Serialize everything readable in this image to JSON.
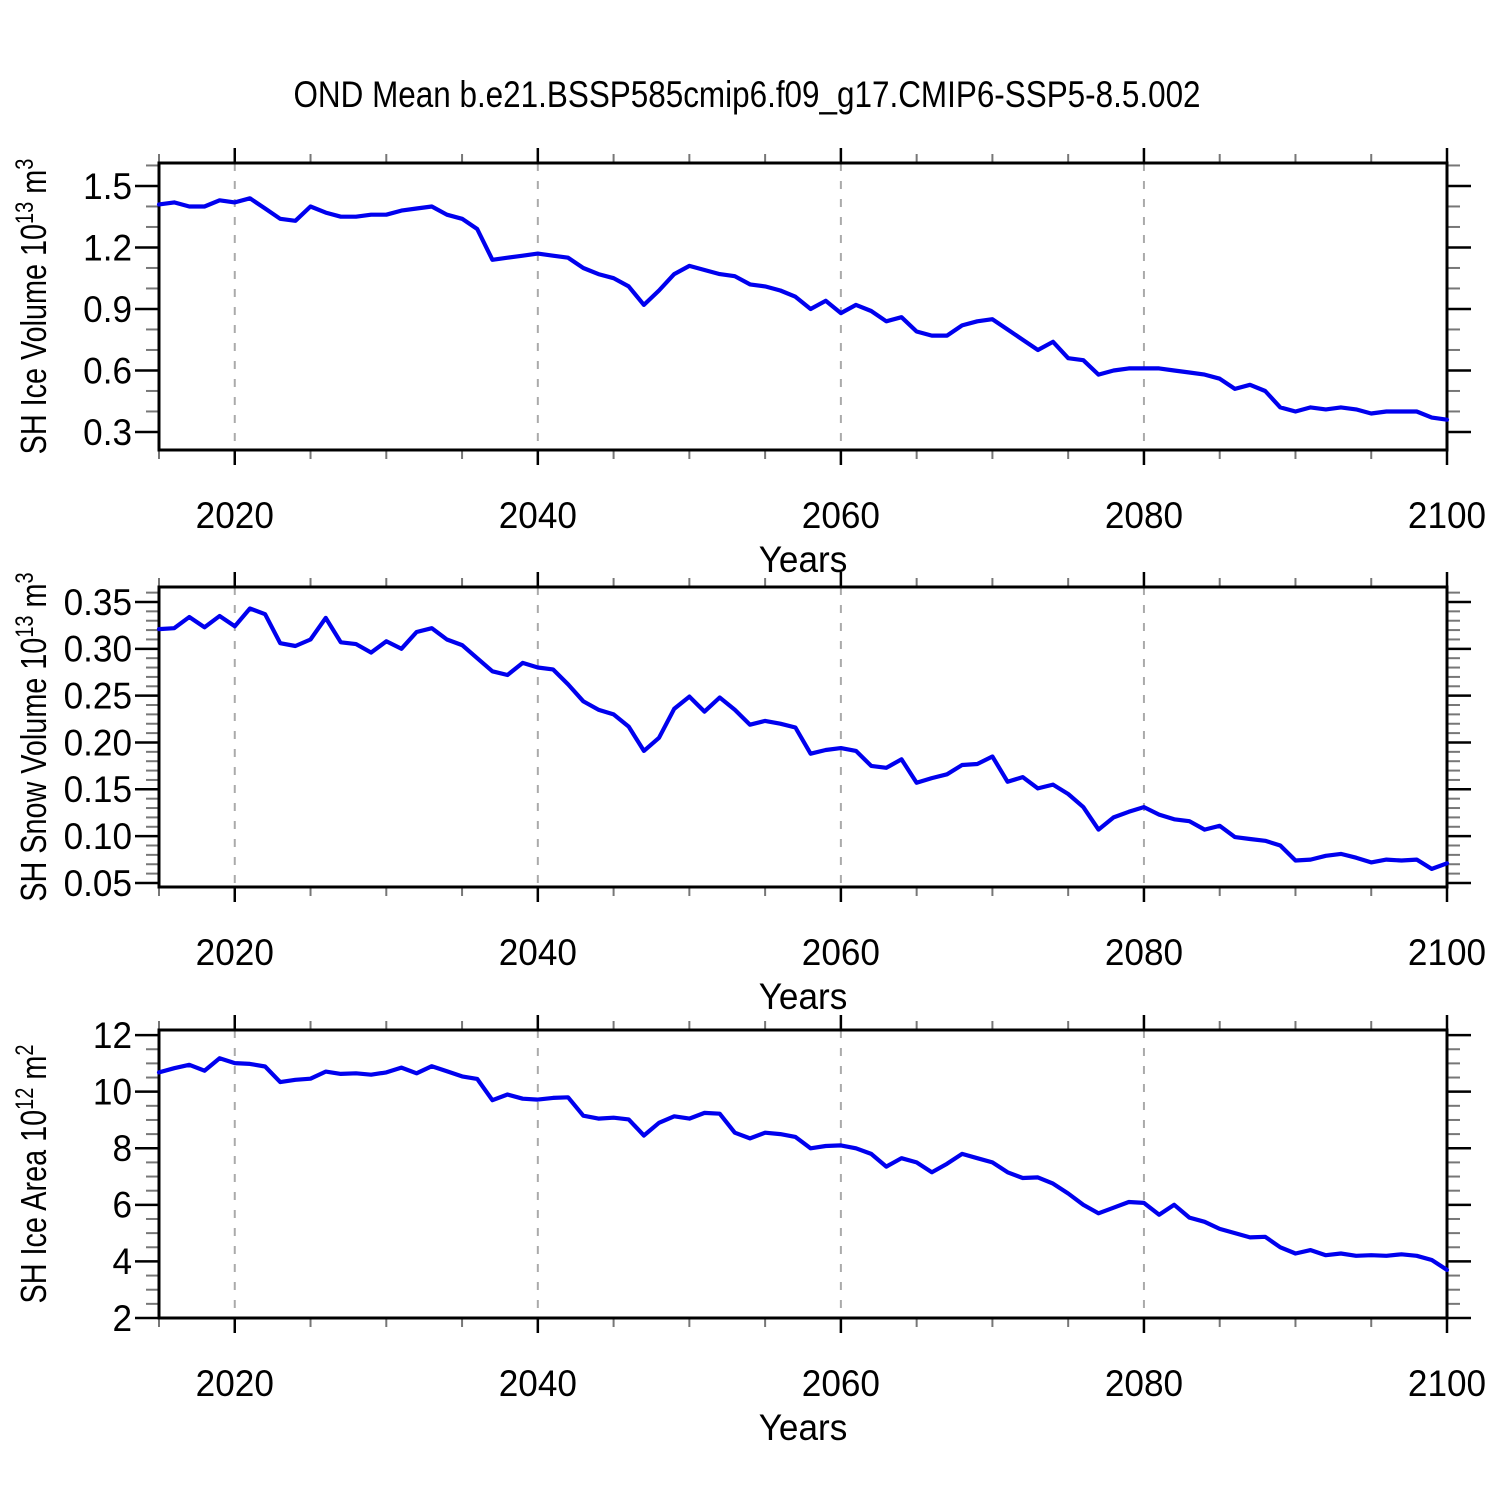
{
  "title": "OND Mean b.e21.BSSP585cmip6.f09_g17.CMIP6-SSP5-8.5.002",
  "chart_data": {
    "type": "line",
    "title": "OND Mean b.e21.BSSP585cmip6.f09_g17.CMIP6-SSP5-8.5.002",
    "style": {
      "line_color": "#0000ee",
      "frame_color": "#000000",
      "grid_color": "#aaaaaa",
      "major_tick_color": "#000000",
      "minor_tick_color": "#777777",
      "grid_on": true,
      "legend": "none"
    },
    "x_axis": {
      "label": "Years",
      "range": [
        2015,
        2100
      ],
      "major_ticks": [
        2020,
        2040,
        2060,
        2080,
        2100
      ],
      "major_tick_labels": [
        "2020",
        "2040",
        "2060",
        "2080",
        "2100"
      ],
      "minor_step": 5,
      "gridlines": [
        2020,
        2040,
        2060,
        2080
      ]
    },
    "x_years": [
      2015,
      2016,
      2017,
      2018,
      2019,
      2020,
      2021,
      2022,
      2023,
      2024,
      2025,
      2026,
      2027,
      2028,
      2029,
      2030,
      2031,
      2032,
      2033,
      2034,
      2035,
      2036,
      2037,
      2038,
      2039,
      2040,
      2041,
      2042,
      2043,
      2044,
      2045,
      2046,
      2047,
      2048,
      2049,
      2050,
      2051,
      2052,
      2053,
      2054,
      2055,
      2056,
      2057,
      2058,
      2059,
      2060,
      2061,
      2062,
      2063,
      2064,
      2065,
      2066,
      2067,
      2068,
      2069,
      2070,
      2071,
      2072,
      2073,
      2074,
      2075,
      2076,
      2077,
      2078,
      2079,
      2080,
      2081,
      2082,
      2083,
      2084,
      2085,
      2086,
      2087,
      2088,
      2089,
      2090,
      2091,
      2092,
      2093,
      2094,
      2095,
      2096,
      2097,
      2098,
      2099,
      2100
    ],
    "panels": [
      {
        "id": "ice-volume",
        "ylabel": "SH Ice Volume 10^13 m^3",
        "ylabel_parts": [
          [
            "text",
            "SH Ice Volume 10"
          ],
          [
            "sup",
            "13"
          ],
          [
            "text",
            " m"
          ],
          [
            "sup",
            "3"
          ]
        ],
        "ylim": [
          0.212,
          1.612
        ],
        "yticks": [
          1.5,
          1.2,
          0.9,
          0.6,
          0.3
        ],
        "ytick_labels": [
          "1.5",
          "1.2",
          "0.9",
          "0.6",
          "0.3"
        ],
        "y_minor_step": 0.1,
        "values": [
          1.41,
          1.42,
          1.4,
          1.4,
          1.43,
          1.42,
          1.44,
          1.39,
          1.34,
          1.33,
          1.4,
          1.37,
          1.35,
          1.35,
          1.36,
          1.36,
          1.38,
          1.39,
          1.4,
          1.36,
          1.34,
          1.29,
          1.14,
          1.15,
          1.16,
          1.17,
          1.16,
          1.15,
          1.1,
          1.07,
          1.05,
          1.01,
          0.92,
          0.99,
          1.07,
          1.11,
          1.09,
          1.07,
          1.06,
          1.02,
          1.01,
          0.99,
          0.96,
          0.9,
          0.94,
          0.88,
          0.92,
          0.89,
          0.84,
          0.86,
          0.79,
          0.77,
          0.77,
          0.82,
          0.84,
          0.85,
          0.8,
          0.75,
          0.7,
          0.74,
          0.66,
          0.65,
          0.58,
          0.6,
          0.61,
          0.61,
          0.61,
          0.6,
          0.59,
          0.58,
          0.56,
          0.51,
          0.53,
          0.5,
          0.42,
          0.4,
          0.42,
          0.41,
          0.42,
          0.41,
          0.39,
          0.4,
          0.4,
          0.4,
          0.37,
          0.36
        ]
      },
      {
        "id": "snow-volume",
        "ylabel": "SH Snow Volume 10^13 m^3",
        "ylabel_parts": [
          [
            "text",
            "SH Snow Volume 10"
          ],
          [
            "sup",
            "13"
          ],
          [
            "text",
            " m"
          ],
          [
            "sup",
            "3"
          ]
        ],
        "ylim": [
          0.0457,
          0.366
        ],
        "yticks": [
          0.35,
          0.3,
          0.25,
          0.2,
          0.15,
          0.1,
          0.05
        ],
        "ytick_labels": [
          "0.35",
          "0.30",
          "0.25",
          "0.20",
          "0.15",
          "0.10",
          "0.05"
        ],
        "y_minor_step": 0.01,
        "values": [
          0.321,
          0.322,
          0.334,
          0.323,
          0.335,
          0.324,
          0.343,
          0.337,
          0.306,
          0.303,
          0.31,
          0.333,
          0.307,
          0.305,
          0.296,
          0.308,
          0.3,
          0.318,
          0.322,
          0.31,
          0.304,
          0.29,
          0.276,
          0.272,
          0.285,
          0.28,
          0.278,
          0.262,
          0.244,
          0.235,
          0.23,
          0.217,
          0.191,
          0.205,
          0.236,
          0.249,
          0.233,
          0.248,
          0.235,
          0.219,
          0.223,
          0.22,
          0.216,
          0.188,
          0.192,
          0.194,
          0.191,
          0.175,
          0.173,
          0.182,
          0.157,
          0.162,
          0.166,
          0.176,
          0.177,
          0.185,
          0.158,
          0.163,
          0.151,
          0.155,
          0.145,
          0.131,
          0.107,
          0.12,
          0.126,
          0.131,
          0.123,
          0.118,
          0.116,
          0.107,
          0.111,
          0.099,
          0.097,
          0.095,
          0.09,
          0.074,
          0.075,
          0.079,
          0.081,
          0.077,
          0.072,
          0.075,
          0.074,
          0.075,
          0.065,
          0.071
        ]
      },
      {
        "id": "ice-area",
        "ylabel": "SH Ice Area 10^12 m^2",
        "ylabel_parts": [
          [
            "text",
            "SH Ice Area 10"
          ],
          [
            "sup",
            "12"
          ],
          [
            "text",
            " m"
          ],
          [
            "sup",
            "2"
          ]
        ],
        "ylim": [
          2.0,
          12.18
        ],
        "yticks": [
          12,
          10,
          8,
          6,
          4,
          2
        ],
        "ytick_labels": [
          "12",
          "10",
          "8",
          "6",
          "4",
          "2"
        ],
        "y_minor_step": 0.5,
        "values": [
          10.68,
          10.83,
          10.95,
          10.74,
          11.18,
          11.01,
          10.98,
          10.89,
          10.34,
          10.42,
          10.46,
          10.71,
          10.63,
          10.65,
          10.6,
          10.68,
          10.85,
          10.65,
          10.9,
          10.72,
          10.54,
          10.45,
          9.7,
          9.9,
          9.75,
          9.72,
          9.78,
          9.8,
          9.15,
          9.05,
          9.08,
          9.02,
          8.45,
          8.9,
          9.13,
          9.05,
          9.25,
          9.22,
          8.55,
          8.35,
          8.55,
          8.5,
          8.4,
          8.0,
          8.08,
          8.1,
          8.0,
          7.8,
          7.35,
          7.65,
          7.5,
          7.15,
          7.45,
          7.8,
          7.65,
          7.5,
          7.15,
          6.95,
          6.97,
          6.75,
          6.4,
          6.0,
          5.7,
          5.9,
          6.1,
          6.07,
          5.65,
          6.0,
          5.55,
          5.4,
          5.15,
          5.0,
          4.85,
          4.87,
          4.5,
          4.28,
          4.4,
          4.22,
          4.28,
          4.2,
          4.22,
          4.2,
          4.25,
          4.2,
          4.05,
          3.7
        ]
      }
    ]
  }
}
